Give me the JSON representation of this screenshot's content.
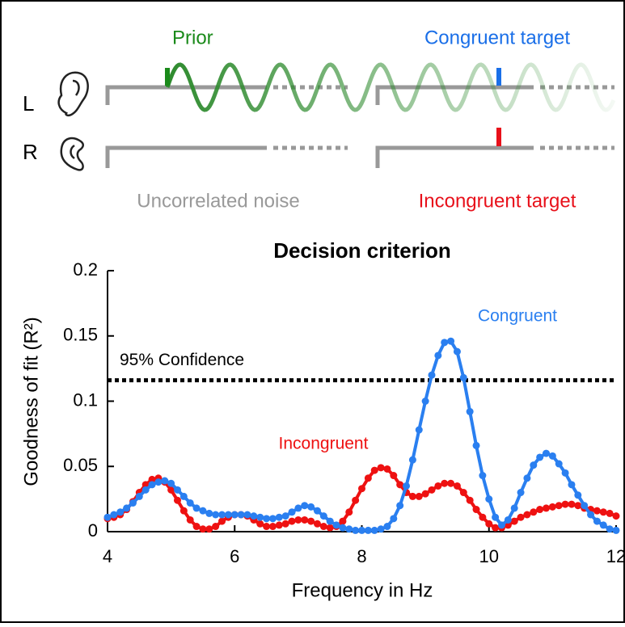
{
  "diagram": {
    "prior": "Prior",
    "congruent_target": "Congruent target",
    "left": "L",
    "right": "R",
    "noise": "Uncorrelated noise",
    "incongruent_target": "Incongruent target"
  },
  "chart_data": {
    "type": "line",
    "title": "Decision criterion",
    "xlabel": "Frequency in Hz",
    "ylabel": "Goodness of fit (R²)",
    "x": [
      4,
      4.1,
      4.2,
      4.3,
      4.4,
      4.5,
      4.6,
      4.7,
      4.8,
      4.9,
      5,
      5.1,
      5.2,
      5.3,
      5.4,
      5.5,
      5.6,
      5.7,
      5.8,
      5.9,
      6,
      6.1,
      6.2,
      6.3,
      6.4,
      6.5,
      6.6,
      6.7,
      6.8,
      6.9,
      7,
      7.1,
      7.2,
      7.3,
      7.4,
      7.5,
      7.6,
      7.7,
      7.8,
      7.9,
      8,
      8.1,
      8.2,
      8.3,
      8.4,
      8.5,
      8.6,
      8.7,
      8.8,
      8.9,
      9,
      9.1,
      9.2,
      9.3,
      9.4,
      9.5,
      9.6,
      9.7,
      9.8,
      9.9,
      10,
      10.1,
      10.2,
      10.3,
      10.4,
      10.5,
      10.6,
      10.7,
      10.8,
      10.9,
      11,
      11.1,
      11.2,
      11.3,
      11.4,
      11.5,
      11.6,
      11.7,
      11.8,
      11.9,
      12
    ],
    "series": [
      {
        "name": "Incongruent",
        "color": "#ee1111",
        "values": [
          0.01,
          0.011,
          0.013,
          0.017,
          0.023,
          0.03,
          0.036,
          0.04,
          0.041,
          0.038,
          0.032,
          0.024,
          0.016,
          0.009,
          0.004,
          0.002,
          0.002,
          0.004,
          0.008,
          0.011,
          0.013,
          0.013,
          0.012,
          0.009,
          0.006,
          0.004,
          0.004,
          0.005,
          0.006,
          0.008,
          0.009,
          0.009,
          0.008,
          0.006,
          0.004,
          0.003,
          0.004,
          0.008,
          0.015,
          0.024,
          0.033,
          0.041,
          0.047,
          0.049,
          0.048,
          0.043,
          0.036,
          0.03,
          0.027,
          0.027,
          0.029,
          0.032,
          0.035,
          0.037,
          0.037,
          0.035,
          0.03,
          0.024,
          0.017,
          0.011,
          0.006,
          0.003,
          0.003,
          0.005,
          0.008,
          0.011,
          0.013,
          0.015,
          0.017,
          0.018,
          0.019,
          0.02,
          0.021,
          0.021,
          0.02,
          0.018,
          0.017,
          0.016,
          0.015,
          0.014,
          0.012
        ]
      },
      {
        "name": "Congruent",
        "color": "#2a7ff0",
        "values": [
          0.011,
          0.013,
          0.015,
          0.018,
          0.022,
          0.027,
          0.032,
          0.036,
          0.038,
          0.039,
          0.037,
          0.032,
          0.027,
          0.022,
          0.018,
          0.016,
          0.014,
          0.013,
          0.013,
          0.013,
          0.013,
          0.013,
          0.013,
          0.012,
          0.011,
          0.01,
          0.01,
          0.011,
          0.012,
          0.015,
          0.018,
          0.02,
          0.019,
          0.016,
          0.012,
          0.008,
          0.005,
          0.003,
          0.002,
          0.001,
          0.001,
          0.001,
          0.001,
          0.002,
          0.004,
          0.01,
          0.02,
          0.035,
          0.055,
          0.078,
          0.1,
          0.12,
          0.135,
          0.145,
          0.146,
          0.138,
          0.118,
          0.092,
          0.066,
          0.043,
          0.025,
          0.011,
          0.005,
          0.009,
          0.018,
          0.03,
          0.041,
          0.051,
          0.057,
          0.06,
          0.058,
          0.052,
          0.045,
          0.036,
          0.028,
          0.02,
          0.013,
          0.008,
          0.005,
          0.002,
          0.001
        ]
      }
    ],
    "threshold": {
      "label": "95% Confidence",
      "value": 0.116
    },
    "xlim": [
      4,
      12
    ],
    "xticks": [
      4,
      6,
      8,
      10,
      12
    ],
    "ylim": [
      0,
      0.2
    ],
    "yticks": [
      0,
      0.05,
      0.1,
      0.15,
      0.2
    ]
  }
}
